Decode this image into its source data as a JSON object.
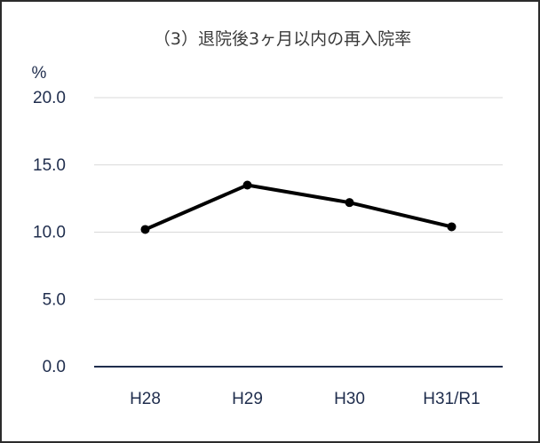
{
  "chart_data": {
    "type": "line",
    "title": "（3）退院後3ヶ月以内の再入院率",
    "ylabel": "%",
    "xlabel": "",
    "categories": [
      "H28",
      "H29",
      "H30",
      "H31/R1"
    ],
    "series": [
      {
        "values": [
          10.2,
          13.5,
          12.2,
          10.4
        ]
      }
    ],
    "ylim": [
      0,
      20
    ],
    "yticks": [
      "0.0",
      "5.0",
      "10.0",
      "15.0",
      "20.0"
    ],
    "grid": true,
    "legend": "none",
    "colors": {
      "line": "#000000",
      "grid": "#d9d9d9",
      "axis": "#1f2d4d",
      "text": "#1f2d4d"
    }
  }
}
